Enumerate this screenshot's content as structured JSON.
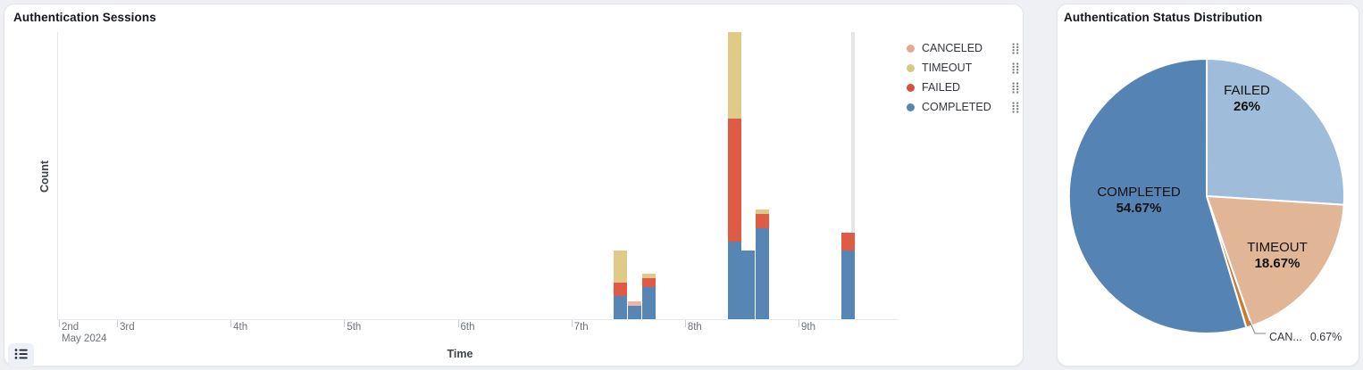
{
  "page": {
    "background": "#EEF0F3"
  },
  "left_panel": {
    "title": "Authentication Sessions",
    "legend": [
      {
        "label": "CANCELED",
        "color": "#ECA493"
      },
      {
        "label": "TIMEOUT",
        "color": "#DCC77E"
      },
      {
        "label": "FAILED",
        "color": "#D6523F"
      },
      {
        "label": "COMPLETED",
        "color": "#5886B4"
      }
    ]
  },
  "right_panel": {
    "title": "Authentication Status Distribution"
  },
  "chart_data": [
    {
      "type": "bar",
      "stacked": true,
      "title": "Authentication Sessions",
      "xlabel": "Time",
      "ylabel": "Count",
      "ylim": [
        0,
        63
      ],
      "grid": false,
      "legend_position": "right",
      "x_axis": {
        "type": "time",
        "tick_labels": [
          "2nd",
          "3rd",
          "4th",
          "5th",
          "6th",
          "7th",
          "8th",
          "9th"
        ],
        "first_label_sub": "May 2024"
      },
      "x": [
        "2024-05-07 09:00",
        "2024-05-07 12:00",
        "2024-05-07 15:00",
        "2024-05-08 09:00",
        "2024-05-08 12:00",
        "2024-05-08 15:00",
        "2024-05-09 09:00"
      ],
      "series": [
        {
          "name": "COMPLETED",
          "color": "#5886B4",
          "values": [
            5,
            3,
            7,
            17,
            15,
            20,
            15
          ]
        },
        {
          "name": "FAILED",
          "color": "#DE5B45",
          "values": [
            3,
            0,
            2,
            27,
            0,
            3,
            4
          ]
        },
        {
          "name": "TIMEOUT",
          "color": "#DFCB87",
          "values": [
            7,
            0,
            1,
            19,
            0,
            1,
            0
          ]
        },
        {
          "name": "CANCELED",
          "color": "#F0B4A2",
          "values": [
            0,
            1,
            0,
            0,
            0,
            0,
            0
          ]
        }
      ]
    },
    {
      "type": "pie",
      "title": "Authentication Status Distribution",
      "start_angle": "top",
      "direction": "clockwise",
      "slices": [
        {
          "label": "FAILED",
          "pct": 26,
          "display": "26%",
          "color": "#9FBCDA"
        },
        {
          "label": "TIMEOUT",
          "pct": 18.67,
          "display": "18.67%",
          "color": "#E1B697"
        },
        {
          "label": "CANCELED",
          "pct": 0.67,
          "display": "0.67%",
          "outside_label": "CAN...",
          "color": "#C87C33"
        },
        {
          "label": "COMPLETED",
          "pct": 54.67,
          "display": "54.67%",
          "color": "#5584B4"
        }
      ]
    }
  ]
}
